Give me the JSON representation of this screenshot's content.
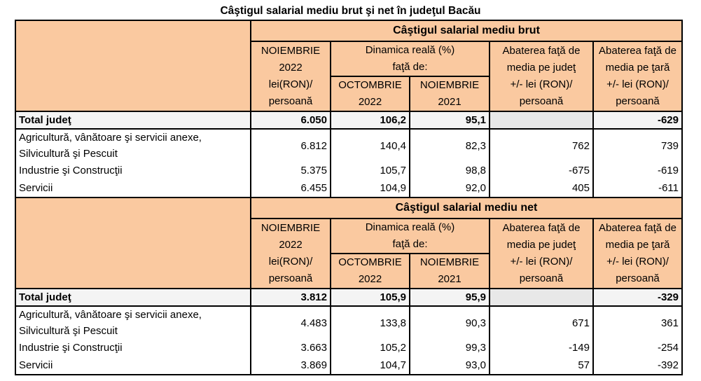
{
  "title": "Câştigul salarial mediu brut şi net în judeţul Bacău",
  "headers": {
    "col1": [
      "NOIEMBRIE",
      "2022",
      "lei(RON)/",
      "persoană"
    ],
    "dyn": [
      "Dinamica reală (%)",
      "faţă de:"
    ],
    "col2": [
      "OCTOMBRIE",
      "2022"
    ],
    "col3": [
      "NOIEMBRIE",
      "2021"
    ],
    "col4": [
      "Abaterea faţă de",
      "media pe judeţ",
      "+/- lei (RON)/",
      "persoană"
    ],
    "col5": [
      "Abaterea faţă de",
      "media pe ţară",
      "+/- lei (RON)/",
      "persoană"
    ]
  },
  "blocks": [
    {
      "heading": "Câştigul salarial mediu brut",
      "total": {
        "label": "Total judeţ",
        "values": [
          "6.050",
          "106,2",
          "95,1",
          "",
          "-629"
        ]
      },
      "rows": [
        {
          "label": [
            "Agricultură, vânătoare şi servicii anexe,",
            "Silvicultură şi Pescuit"
          ],
          "values": [
            "6.812",
            "140,4",
            "82,3",
            "762",
            "739"
          ]
        },
        {
          "label": [
            "Industrie şi Construcţii"
          ],
          "values": [
            "5.375",
            "105,7",
            "98,8",
            "-675",
            "-619"
          ]
        },
        {
          "label": [
            "Servicii"
          ],
          "values": [
            "6.455",
            "104,9",
            "92,0",
            "405",
            "-611"
          ]
        }
      ]
    },
    {
      "heading": "Câştigul salarial mediu net",
      "total": {
        "label": "Total judeţ",
        "values": [
          "3.812",
          "105,9",
          "95,9",
          "",
          "-329"
        ]
      },
      "rows": [
        {
          "label": [
            "Agricultură, vânătoare şi servicii anexe,",
            "Silvicultură şi Pescuit"
          ],
          "values": [
            "4.483",
            "133,8",
            "90,3",
            "671",
            "361"
          ]
        },
        {
          "label": [
            "Industrie şi Construcţii"
          ],
          "values": [
            "3.663",
            "105,2",
            "99,3",
            "-149",
            "-254"
          ]
        },
        {
          "label": [
            "Servicii"
          ],
          "values": [
            "3.869",
            "104,7",
            "93,0",
            "57",
            "-392"
          ]
        }
      ]
    }
  ]
}
